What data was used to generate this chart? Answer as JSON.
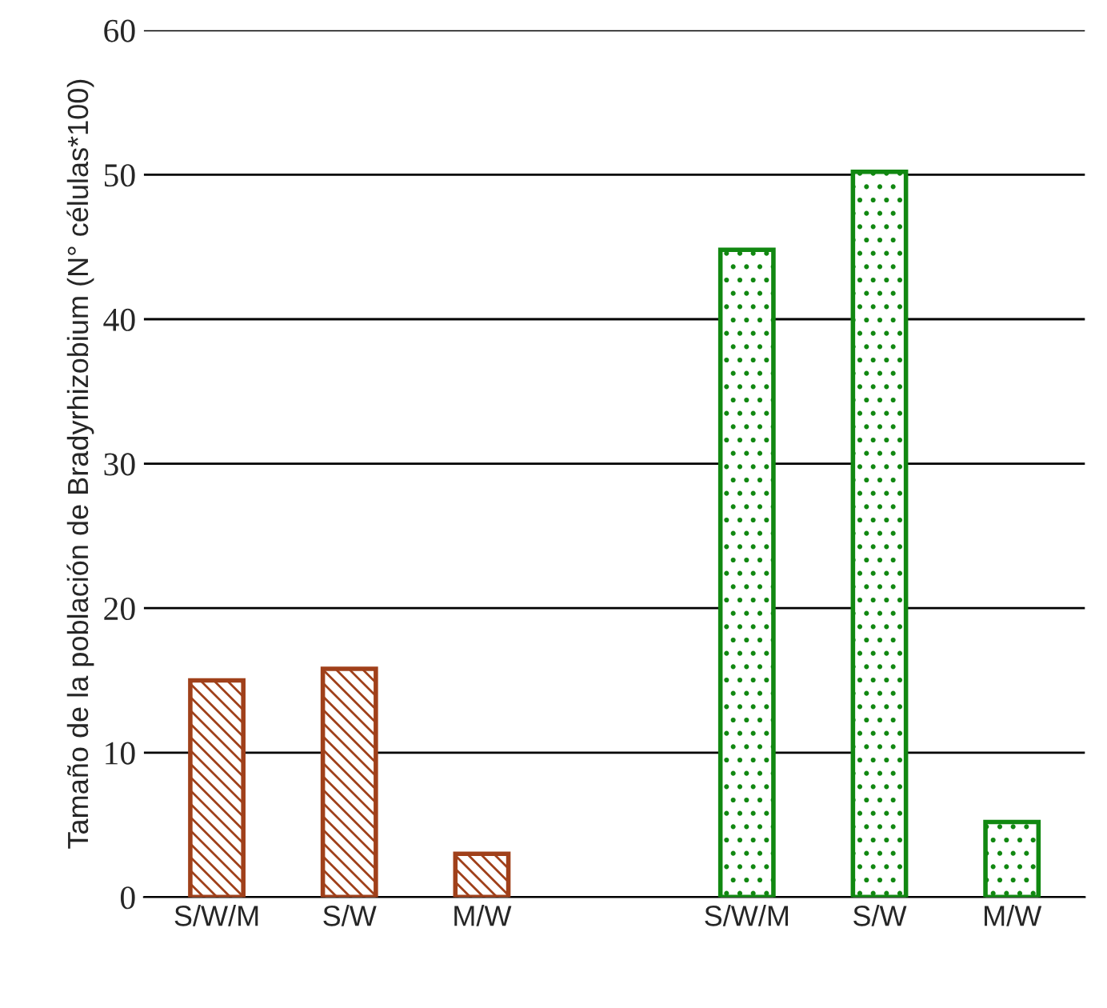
{
  "chart_data": {
    "type": "bar",
    "ylabel": "Tamaño de la población de Bradyrhizobium (N° células*100)",
    "categories": [
      "S/W/M",
      "S/W",
      "M/W",
      null,
      "S/W/M",
      "S/W",
      "M/W"
    ],
    "series": [
      {
        "color": "#a0401a",
        "values": [
          15,
          15.8,
          3,
          null,
          null,
          null,
          null
        ]
      },
      {
        "color": "#118811",
        "values": [
          null,
          null,
          null,
          null,
          44.8,
          50.2,
          5.2
        ]
      }
    ],
    "ylim": [
      0,
      60
    ],
    "yticks": [
      0,
      10,
      20,
      30,
      40,
      50,
      60
    ],
    "grid": "y"
  }
}
